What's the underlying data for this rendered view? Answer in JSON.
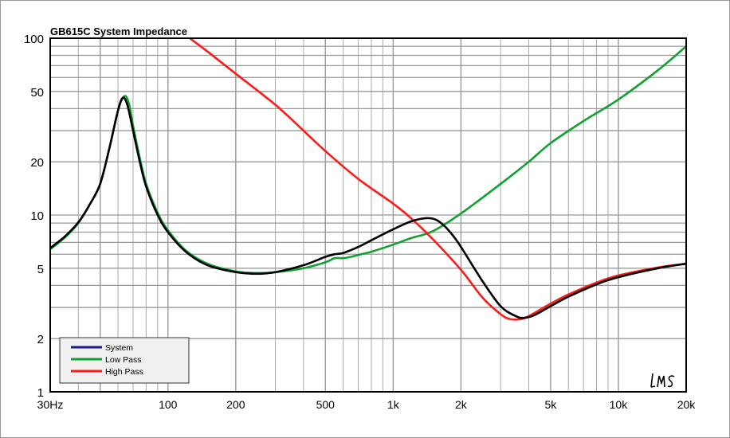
{
  "chart_data": {
    "type": "line",
    "title": "GB615C System Impedance",
    "x_scale": "log",
    "y_scale": "log",
    "xlim": [
      30,
      20000
    ],
    "ylim": [
      1,
      100
    ],
    "grid": true,
    "legend_placement": "bottom-left",
    "x_ticks": [
      {
        "value": 30,
        "label": "30Hz"
      },
      {
        "value": 100,
        "label": "100"
      },
      {
        "value": 200,
        "label": "200"
      },
      {
        "value": 500,
        "label": "500"
      },
      {
        "value": 1000,
        "label": "1k"
      },
      {
        "value": 2000,
        "label": "2k"
      },
      {
        "value": 5000,
        "label": "5k"
      },
      {
        "value": 10000,
        "label": "10k"
      },
      {
        "value": 20000,
        "label": "20k"
      }
    ],
    "y_ticks": [
      {
        "value": 1,
        "label": "1"
      },
      {
        "value": 2,
        "label": "2"
      },
      {
        "value": 5,
        "label": "5"
      },
      {
        "value": 10,
        "label": "10"
      },
      {
        "value": 20,
        "label": "20"
      },
      {
        "value": 50,
        "label": "50"
      },
      {
        "value": 100,
        "label": "100"
      }
    ],
    "series": [
      {
        "name": "Low Pass",
        "color": "#12a032",
        "points": [
          [
            30,
            6.4
          ],
          [
            35,
            7.5
          ],
          [
            40,
            9
          ],
          [
            45,
            11.5
          ],
          [
            50,
            15
          ],
          [
            55,
            24
          ],
          [
            60,
            39
          ],
          [
            64,
            47
          ],
          [
            67,
            43
          ],
          [
            70,
            32
          ],
          [
            75,
            21
          ],
          [
            80,
            15
          ],
          [
            90,
            10.3
          ],
          [
            100,
            8.2
          ],
          [
            120,
            6.3
          ],
          [
            150,
            5.3
          ],
          [
            200,
            4.8
          ],
          [
            250,
            4.7
          ],
          [
            300,
            4.75
          ],
          [
            400,
            5.0
          ],
          [
            500,
            5.4
          ],
          [
            550,
            5.7
          ],
          [
            600,
            5.7
          ],
          [
            650,
            5.8
          ],
          [
            700,
            5.95
          ],
          [
            800,
            6.2
          ],
          [
            1000,
            6.8
          ],
          [
            1200,
            7.4
          ],
          [
            1500,
            8.1
          ],
          [
            2000,
            10.2
          ],
          [
            3000,
            15
          ],
          [
            4000,
            20
          ],
          [
            5000,
            25.5
          ],
          [
            7000,
            34
          ],
          [
            10000,
            45
          ],
          [
            15000,
            66
          ],
          [
            20000,
            90
          ]
        ]
      },
      {
        "name": "High Pass",
        "color": "#ff1a1a",
        "points": [
          [
            125,
            100
          ],
          [
            150,
            84
          ],
          [
            200,
            63
          ],
          [
            300,
            42
          ],
          [
            400,
            30
          ],
          [
            500,
            23
          ],
          [
            700,
            16
          ],
          [
            1000,
            11.6
          ],
          [
            1200,
            9.6
          ],
          [
            1500,
            7.3
          ],
          [
            2000,
            4.9
          ],
          [
            2500,
            3.4
          ],
          [
            3000,
            2.75
          ],
          [
            3300,
            2.58
          ],
          [
            3700,
            2.58
          ],
          [
            4000,
            2.68
          ],
          [
            5000,
            3.15
          ],
          [
            6000,
            3.55
          ],
          [
            8000,
            4.15
          ],
          [
            10000,
            4.55
          ],
          [
            15000,
            5.05
          ],
          [
            20000,
            5.3
          ]
        ]
      },
      {
        "name": "System",
        "color": "#000000",
        "legend_color": "#1c1c8c",
        "points": [
          [
            30,
            6.5
          ],
          [
            35,
            7.6
          ],
          [
            40,
            9.1
          ],
          [
            45,
            11.5
          ],
          [
            50,
            15
          ],
          [
            55,
            24
          ],
          [
            60,
            39
          ],
          [
            63,
            46
          ],
          [
            66,
            42
          ],
          [
            70,
            30
          ],
          [
            75,
            20
          ],
          [
            80,
            14.5
          ],
          [
            90,
            10
          ],
          [
            100,
            8
          ],
          [
            120,
            6.2
          ],
          [
            150,
            5.2
          ],
          [
            200,
            4.75
          ],
          [
            250,
            4.65
          ],
          [
            300,
            4.75
          ],
          [
            400,
            5.2
          ],
          [
            500,
            5.8
          ],
          [
            550,
            6.0
          ],
          [
            600,
            6.1
          ],
          [
            700,
            6.6
          ],
          [
            800,
            7.2
          ],
          [
            1000,
            8.3
          ],
          [
            1200,
            9.2
          ],
          [
            1400,
            9.6
          ],
          [
            1550,
            9.4
          ],
          [
            1700,
            8.6
          ],
          [
            1850,
            7.6
          ],
          [
            2000,
            6.6
          ],
          [
            2500,
            4.2
          ],
          [
            3000,
            3.05
          ],
          [
            3500,
            2.68
          ],
          [
            3800,
            2.62
          ],
          [
            4200,
            2.7
          ],
          [
            5000,
            3.05
          ],
          [
            6000,
            3.45
          ],
          [
            8000,
            4.05
          ],
          [
            10000,
            4.45
          ],
          [
            15000,
            5.0
          ],
          [
            20000,
            5.3
          ]
        ]
      }
    ],
    "legend_order": [
      "System",
      "Low Pass",
      "High Pass"
    ],
    "watermark": "LMS"
  }
}
